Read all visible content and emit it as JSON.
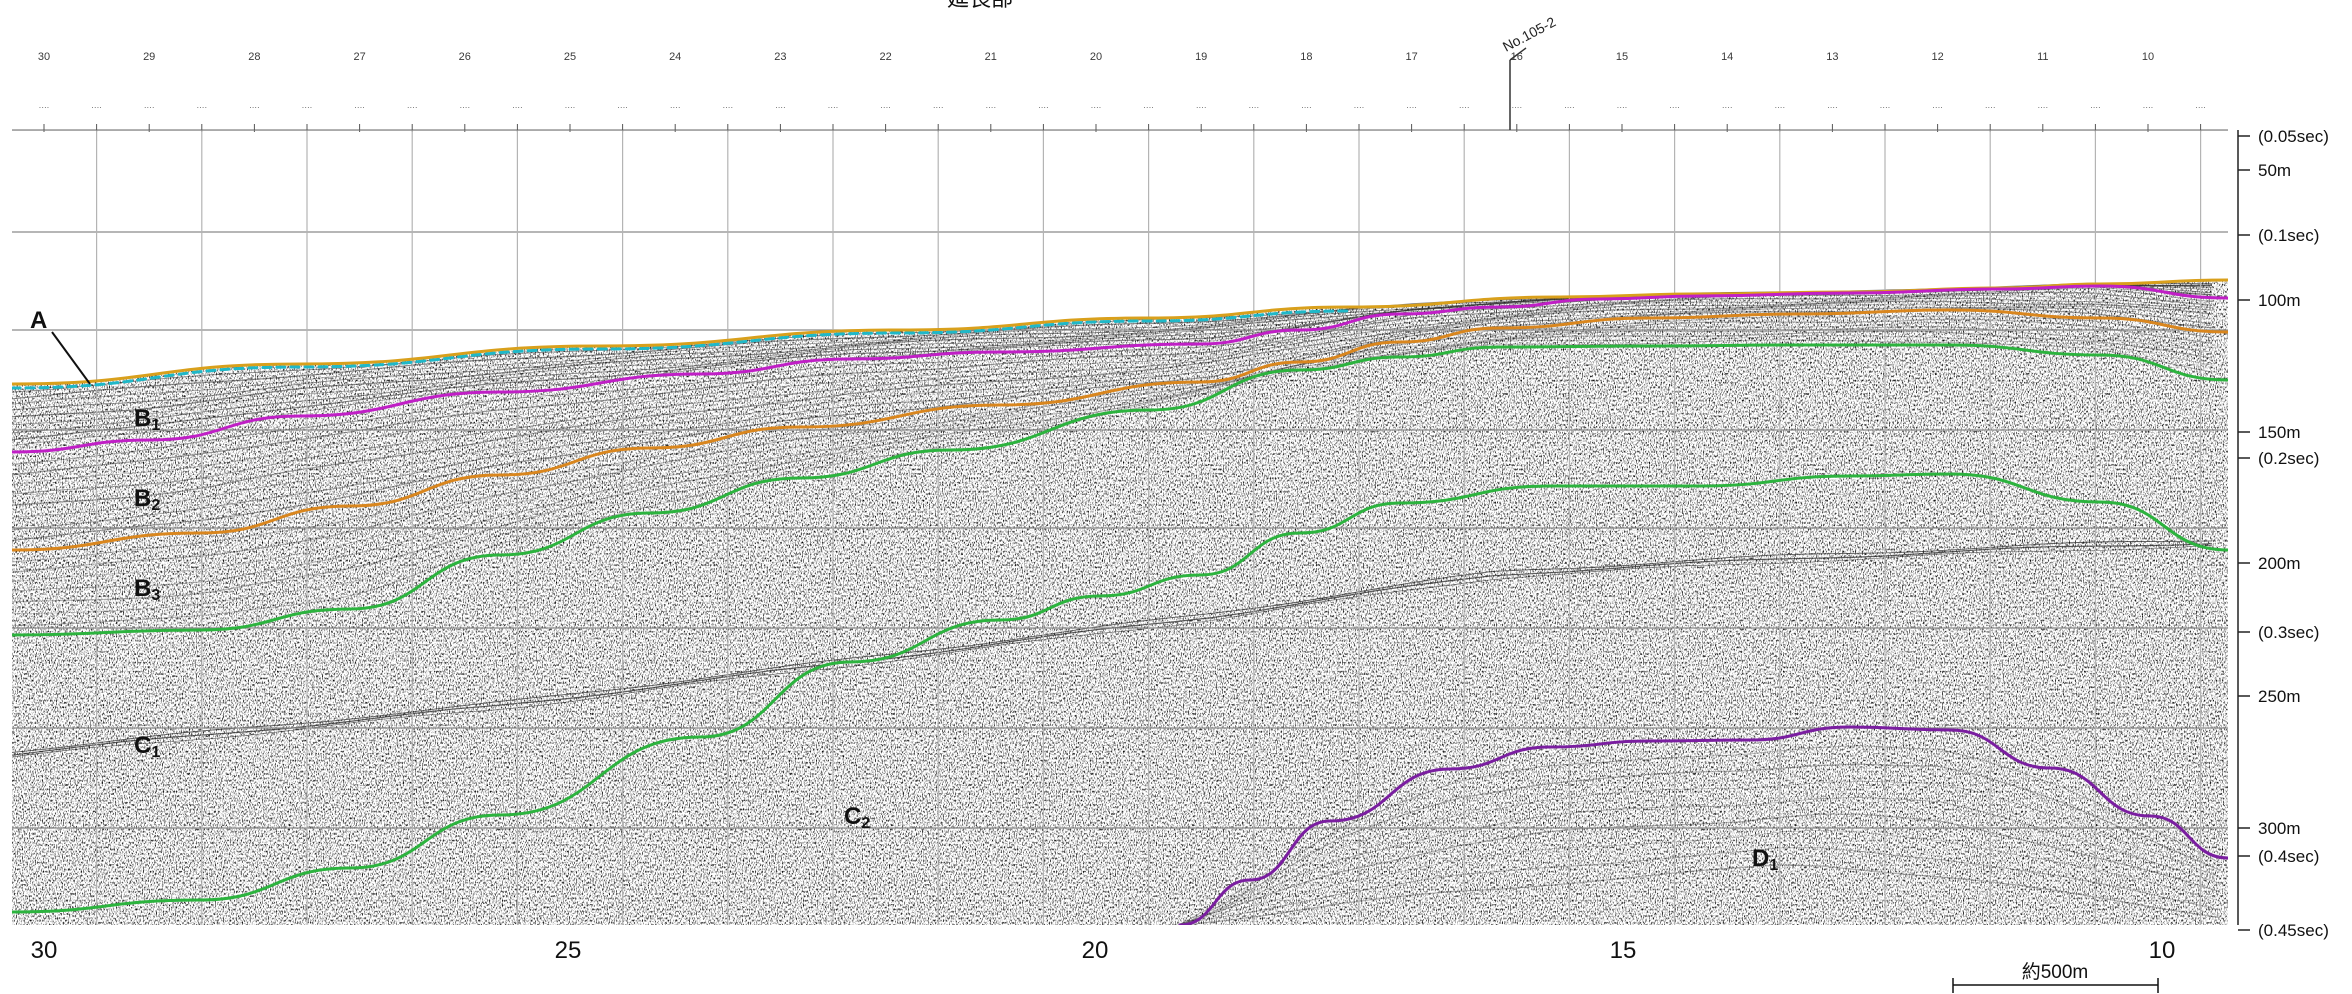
{
  "header": {
    "title": "延長部",
    "station_tag": "No.105-2"
  },
  "top_station_numbers": [
    "30",
    "29",
    "28",
    "27",
    "26",
    "25",
    "24",
    "23",
    "22",
    "21",
    "20",
    "19",
    "18",
    "17",
    "16",
    "15",
    "14",
    "13",
    "12",
    "11",
    "10"
  ],
  "bottom_axis": [
    "30",
    "25",
    "20",
    "15",
    "10"
  ],
  "depth_scale": [
    {
      "label": "(0.05sec)",
      "depth_m": 37.5
    },
    {
      "label": "50m",
      "depth_m": 50
    },
    {
      "label": "(0.1sec)",
      "depth_m": 75
    },
    {
      "label": "100m",
      "depth_m": 100
    },
    {
      "label": "150m",
      "depth_m": 150
    },
    {
      "label": "(0.2sec)",
      "depth_m": 160
    },
    {
      "label": "200m",
      "depth_m": 200
    },
    {
      "label": "(0.3sec)",
      "depth_m": 225
    },
    {
      "label": "250m",
      "depth_m": 250
    },
    {
      "label": "300m",
      "depth_m": 300
    },
    {
      "label": "(0.4sec)",
      "depth_m": 310
    },
    {
      "label": "(0.45sec)",
      "depth_m": 337.5
    }
  ],
  "scale_bar": {
    "label": "約500m"
  },
  "units": [
    {
      "id": "A",
      "main": "A",
      "sub": ""
    },
    {
      "id": "B1",
      "main": "B",
      "sub": "1"
    },
    {
      "id": "B2",
      "main": "B",
      "sub": "2"
    },
    {
      "id": "B3",
      "main": "B",
      "sub": "3"
    },
    {
      "id": "C1",
      "main": "C",
      "sub": "1"
    },
    {
      "id": "C2",
      "main": "C",
      "sub": "2"
    },
    {
      "id": "D1",
      "main": "D",
      "sub": "1"
    }
  ],
  "colors": {
    "background": "#ffffff",
    "grid": "#8a8a8a",
    "seafloor_orange": "#d9a01c",
    "seafloor_cyan": "#1fb8c8",
    "base_B1_magenta": "#c01fc6",
    "base_B2_orange": "#d9861e",
    "base_B3_green": "#2cb33e",
    "base_C1_green": "#2cb33e",
    "base_C2_green": "#2cb33e",
    "top_D1_purple": "#7a1ea0",
    "reflector": "#2a2a2a"
  }
}
